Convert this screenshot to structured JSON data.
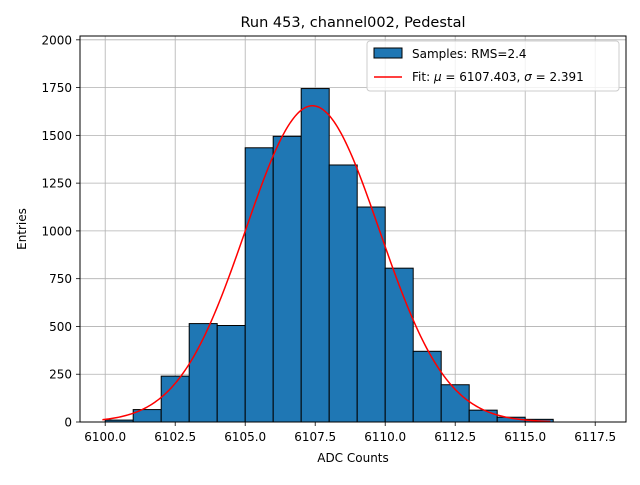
{
  "chart_data": {
    "type": "bar",
    "title": "Run 453, channel002, Pedestal",
    "xlabel": "ADC Counts",
    "ylabel": "Entries",
    "xlim": [
      6099.1,
      6118.6
    ],
    "ylim": [
      0,
      2020
    ],
    "xticks": [
      6100.0,
      6102.5,
      6105.0,
      6107.5,
      6110.0,
      6112.5,
      6115.0,
      6117.5
    ],
    "xtick_labels": [
      "6100.0",
      "6102.5",
      "6105.0",
      "6107.5",
      "6110.0",
      "6112.5",
      "6115.0",
      "6117.5"
    ],
    "yticks": [
      0,
      250,
      500,
      750,
      1000,
      1250,
      1500,
      1750,
      2000
    ],
    "ytick_labels": [
      "0",
      "250",
      "500",
      "750",
      "1000",
      "1250",
      "1500",
      "1750",
      "2000"
    ],
    "grid": true,
    "legend_position": "top-right",
    "histogram": {
      "name": "Samples: RMS=2.4",
      "color": "#1f77b4",
      "edge_color": "#000000",
      "bin_edges": [
        6100,
        6101,
        6102,
        6103,
        6104,
        6105,
        6106,
        6107,
        6108,
        6109,
        6110,
        6111,
        6112,
        6113,
        6114,
        6115,
        6116
      ],
      "values": [
        10,
        65,
        240,
        515,
        505,
        1435,
        1495,
        1745,
        1345,
        1125,
        805,
        370,
        195,
        62,
        25,
        14
      ]
    },
    "fit": {
      "name": "Fit: μ = 6107.403, σ = 2.391",
      "legend_prefix": "Fit: ",
      "legend_mu": "μ",
      "legend_mu_text": " = 6107.403, ",
      "legend_sigma": "σ",
      "legend_sigma_text": " = 2.391",
      "color": "#ff0000",
      "mu": 6107.403,
      "sigma": 2.391,
      "amplitude": 1655,
      "x_range": [
        6099.9,
        6115.9
      ]
    }
  }
}
